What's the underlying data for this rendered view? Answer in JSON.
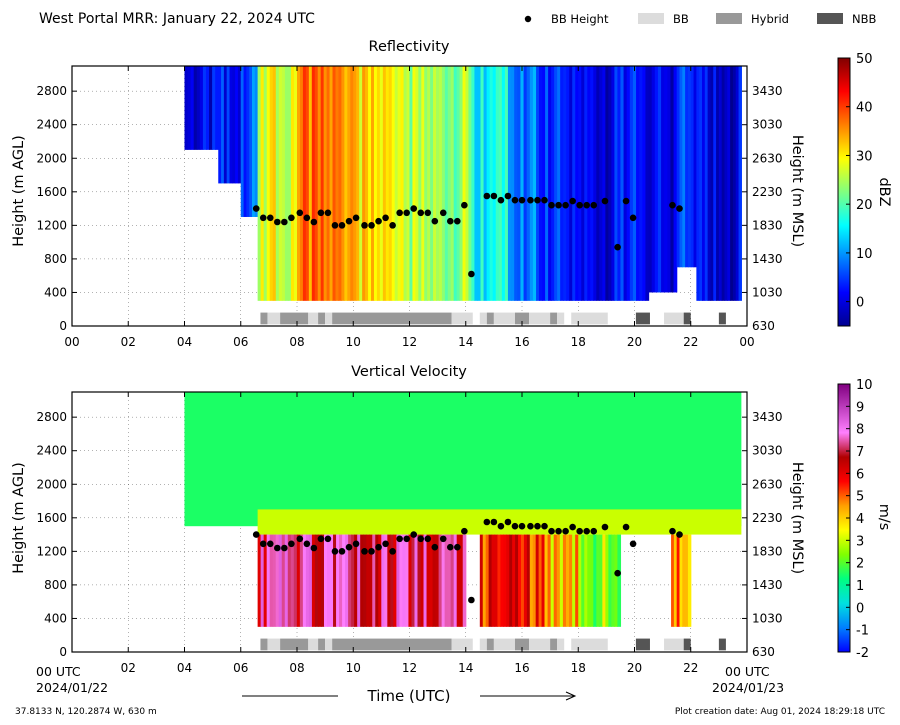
{
  "header": {
    "title": "West Portal MRR:  January 22, 2024 UTC",
    "legend": [
      {
        "label": "BB Height",
        "kind": "dot",
        "color": "#000000"
      },
      {
        "label": "BB",
        "kind": "box",
        "color": "#dcdcdc"
      },
      {
        "label": "Hybrid",
        "kind": "box",
        "color": "#999999"
      },
      {
        "label": "NBB",
        "kind": "box",
        "color": "#555555"
      }
    ]
  },
  "footer": {
    "location": "37.8133 N, 120.2874 W, 630 m",
    "creation": "Plot creation date: Aug 01, 2024 18:29:18 UTC",
    "x_title": "Time (UTC)",
    "start_time": "00 UTC",
    "start_date": "2024/01/22",
    "end_time": "00 UTC",
    "end_date": "2024/01/23"
  },
  "colors": {
    "bb": "#dcdcdc",
    "hybrid": "#999999",
    "nbb": "#555555",
    "bb_height": "#000000"
  },
  "chart_data": [
    {
      "type": "heatmap",
      "title": "Reflectivity",
      "ylabel": "Height (m AGL)",
      "y2label": "Height (m MSL)",
      "colorbar_label": "dBZ",
      "xlim": [
        0,
        24
      ],
      "ylim": [
        0,
        3100
      ],
      "xticks": [
        "00",
        "02",
        "04",
        "06",
        "08",
        "10",
        "12",
        "14",
        "16",
        "18",
        "20",
        "22",
        "00"
      ],
      "yticks": [
        0,
        400,
        800,
        1200,
        1600,
        2000,
        2400,
        2800
      ],
      "y2ticks": [
        630,
        1030,
        1430,
        1830,
        2230,
        2630,
        3030,
        3430
      ],
      "colorbar": {
        "min": -5,
        "max": 50,
        "ticks": [
          0,
          10,
          20,
          30,
          40,
          50
        ],
        "stops": [
          "#00008f",
          "#0000ff",
          "#0080ff",
          "#00ffff",
          "#80ff80",
          "#ffff00",
          "#ff8000",
          "#ff0000",
          "#800000"
        ]
      },
      "shaded_ranges": [
        {
          "x": [
            4.0,
            5.2
          ],
          "base": 2100,
          "value": 0
        },
        {
          "x": [
            5.2,
            6.0
          ],
          "base": 1700,
          "value": 2
        },
        {
          "x": [
            6.0,
            6.6
          ],
          "base": 1300,
          "value": 6
        },
        {
          "x": [
            6.6,
            8.0
          ],
          "base": 300,
          "value": 28
        },
        {
          "x": [
            8.0,
            10.0
          ],
          "base": 300,
          "value": 36
        },
        {
          "x": [
            10.0,
            12.0
          ],
          "base": 300,
          "value": 30
        },
        {
          "x": [
            12.0,
            14.2
          ],
          "base": 300,
          "value": 24
        },
        {
          "x": [
            14.2,
            15.5
          ],
          "base": 300,
          "value": 16
        },
        {
          "x": [
            15.5,
            16.5
          ],
          "base": 300,
          "value": 8
        },
        {
          "x": [
            16.5,
            18.0
          ],
          "base": 300,
          "value": 4
        },
        {
          "x": [
            18.0,
            19.5
          ],
          "base": 300,
          "value": 1
        },
        {
          "x": [
            19.5,
            20.5
          ],
          "base": 300,
          "value": 3
        },
        {
          "x": [
            20.5,
            21.5
          ],
          "base": 400,
          "value": 1
        },
        {
          "x": [
            21.5,
            22.2
          ],
          "base": 700,
          "value": 5
        },
        {
          "x": [
            22.2,
            23.0
          ],
          "base": 300,
          "value": 1
        },
        {
          "x": [
            23.0,
            23.8
          ],
          "base": 300,
          "value": 0
        }
      ]
    },
    {
      "type": "heatmap",
      "title": "Vertical Velocity",
      "ylabel": "Height (m AGL)",
      "y2label": "Height (m MSL)",
      "colorbar_label": "m/s",
      "xlim": [
        0,
        24
      ],
      "ylim": [
        0,
        3100
      ],
      "xticks": [
        "",
        "02",
        "04",
        "06",
        "08",
        "10",
        "12",
        "14",
        "16",
        "18",
        "20",
        "22",
        ""
      ],
      "yticks": [
        0,
        400,
        800,
        1200,
        1600,
        2000,
        2400,
        2800
      ],
      "y2ticks": [
        630,
        1030,
        1430,
        1830,
        2230,
        2630,
        3030,
        3430
      ],
      "colorbar": {
        "min": -2,
        "max": 10,
        "ticks": [
          -2,
          -1,
          0,
          1,
          2,
          3,
          4,
          5,
          6,
          7,
          8,
          9,
          10
        ],
        "stops": [
          "#0000ff",
          "#0080ff",
          "#00e0e0",
          "#00ff80",
          "#80ff00",
          "#ffff00",
          "#ffa000",
          "#ff0000",
          "#b00000",
          "#ff80ff",
          "#c040c0",
          "#800080"
        ]
      },
      "upper_value": 1.5,
      "lower_ranges": [
        {
          "x": [
            6.6,
            14.0
          ],
          "value": 7.2
        },
        {
          "x": [
            14.5,
            16.8
          ],
          "value": 5.6
        },
        {
          "x": [
            16.8,
            18.0
          ],
          "value": 4
        },
        {
          "x": [
            18.0,
            19.5
          ],
          "value": 2.6
        },
        {
          "x": [
            21.3,
            22.0
          ],
          "value": 4.5
        }
      ]
    }
  ],
  "bb_heights": [
    {
      "t": 6.55,
      "h": 1400
    },
    {
      "t": 6.8,
      "h": 1290
    },
    {
      "t": 7.05,
      "h": 1290
    },
    {
      "t": 7.3,
      "h": 1240
    },
    {
      "t": 7.55,
      "h": 1240
    },
    {
      "t": 7.8,
      "h": 1290
    },
    {
      "t": 8.1,
      "h": 1350
    },
    {
      "t": 8.35,
      "h": 1290
    },
    {
      "t": 8.6,
      "h": 1240
    },
    {
      "t": 8.85,
      "h": 1350
    },
    {
      "t": 9.1,
      "h": 1350
    },
    {
      "t": 9.35,
      "h": 1200
    },
    {
      "t": 9.6,
      "h": 1200
    },
    {
      "t": 9.85,
      "h": 1250
    },
    {
      "t": 10.1,
      "h": 1290
    },
    {
      "t": 10.4,
      "h": 1200
    },
    {
      "t": 10.65,
      "h": 1200
    },
    {
      "t": 10.9,
      "h": 1250
    },
    {
      "t": 11.15,
      "h": 1290
    },
    {
      "t": 11.4,
      "h": 1200
    },
    {
      "t": 11.65,
      "h": 1350
    },
    {
      "t": 11.9,
      "h": 1350
    },
    {
      "t": 12.15,
      "h": 1400
    },
    {
      "t": 12.4,
      "h": 1350
    },
    {
      "t": 12.65,
      "h": 1350
    },
    {
      "t": 12.9,
      "h": 1250
    },
    {
      "t": 13.2,
      "h": 1350
    },
    {
      "t": 13.45,
      "h": 1250
    },
    {
      "t": 13.7,
      "h": 1250
    },
    {
      "t": 13.95,
      "h": 1440
    },
    {
      "t": 14.2,
      "h": 620
    },
    {
      "t": 14.75,
      "h": 1550
    },
    {
      "t": 15.0,
      "h": 1550
    },
    {
      "t": 15.25,
      "h": 1500
    },
    {
      "t": 15.5,
      "h": 1550
    },
    {
      "t": 15.75,
      "h": 1500
    },
    {
      "t": 16.0,
      "h": 1500
    },
    {
      "t": 16.3,
      "h": 1500
    },
    {
      "t": 16.55,
      "h": 1500
    },
    {
      "t": 16.8,
      "h": 1500
    },
    {
      "t": 17.05,
      "h": 1440
    },
    {
      "t": 17.3,
      "h": 1440
    },
    {
      "t": 17.55,
      "h": 1440
    },
    {
      "t": 17.8,
      "h": 1490
    },
    {
      "t": 18.05,
      "h": 1440
    },
    {
      "t": 18.3,
      "h": 1440
    },
    {
      "t": 18.55,
      "h": 1440
    },
    {
      "t": 18.95,
      "h": 1490
    },
    {
      "t": 19.4,
      "h": 940
    },
    {
      "t": 19.7,
      "h": 1490
    },
    {
      "t": 19.95,
      "h": 1290
    },
    {
      "t": 21.35,
      "h": 1440
    },
    {
      "t": 21.6,
      "h": 1400
    }
  ],
  "classification_bars": [
    {
      "start": 6.7,
      "end": 6.95,
      "type": "hybrid"
    },
    {
      "start": 6.95,
      "end": 7.4,
      "type": "bb"
    },
    {
      "start": 7.4,
      "end": 8.4,
      "type": "hybrid"
    },
    {
      "start": 8.4,
      "end": 8.75,
      "type": "bb"
    },
    {
      "start": 8.75,
      "end": 9.0,
      "type": "hybrid"
    },
    {
      "start": 9.0,
      "end": 9.25,
      "type": "bb"
    },
    {
      "start": 9.25,
      "end": 13.5,
      "type": "hybrid"
    },
    {
      "start": 13.5,
      "end": 14.25,
      "type": "bb"
    },
    {
      "start": 14.5,
      "end": 14.75,
      "type": "bb"
    },
    {
      "start": 14.75,
      "end": 15.0,
      "type": "hybrid"
    },
    {
      "start": 15.0,
      "end": 15.75,
      "type": "bb"
    },
    {
      "start": 15.75,
      "end": 16.25,
      "type": "hybrid"
    },
    {
      "start": 16.25,
      "end": 17.0,
      "type": "bb"
    },
    {
      "start": 17.0,
      "end": 17.25,
      "type": "hybrid"
    },
    {
      "start": 17.25,
      "end": 17.5,
      "type": "bb"
    },
    {
      "start": 17.75,
      "end": 19.05,
      "type": "bb"
    },
    {
      "start": 20.05,
      "end": 20.55,
      "type": "nbb"
    },
    {
      "start": 21.05,
      "end": 21.75,
      "type": "bb"
    },
    {
      "start": 21.75,
      "end": 22.0,
      "type": "nbb"
    },
    {
      "start": 23.0,
      "end": 23.25,
      "type": "nbb"
    }
  ]
}
